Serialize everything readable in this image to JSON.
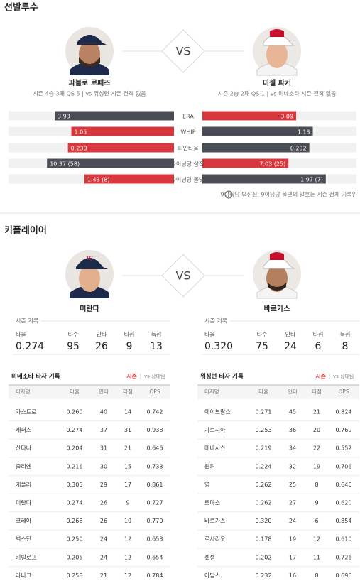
{
  "pitchers": {
    "title": "선발투수",
    "vs": "VS",
    "left": {
      "name": "파블로 로페즈",
      "info": "시즌 4승 3패 QS 5  |  vs 워싱턴 시즌 전적 없음"
    },
    "right": {
      "name": "미첼 파커",
      "info": "시즌 2승 2패 QS 1  |  vs 미네소타 시즌 전적 없음"
    },
    "stats": [
      {
        "label": "ERA",
        "values": [
          3.93,
          3.09
        ],
        "value_labels": [
          "3.93",
          "3.09"
        ],
        "colors": [
          "#4a4d55",
          "#d6383e"
        ]
      },
      {
        "label": "WHIP",
        "values": [
          1.05,
          1.13
        ],
        "value_labels": [
          "1.05",
          "1.13"
        ],
        "colors": [
          "#d6383e",
          "#4a4d55"
        ]
      },
      {
        "label": "피안타율",
        "values": [
          0.23,
          0.232
        ],
        "value_labels": [
          "0.230",
          "0.232"
        ],
        "colors": [
          "#d6383e",
          "#4a4d55"
        ]
      },
      {
        "label": "9이닝당 삼진",
        "values": [
          10.37,
          7.03
        ],
        "value_labels": [
          "10.37 (58)",
          "7.03 (25)"
        ],
        "colors": [
          "#4a4d55",
          "#d6383e"
        ]
      },
      {
        "label": "9이닝당 볼넷",
        "values": [
          1.43,
          1.97
        ],
        "value_labels": [
          "1.43 (8)",
          "1.97 (7)"
        ],
        "colors": [
          "#d6383e",
          "#4a4d55"
        ]
      }
    ],
    "note": "9이닝당 탈삼진, 9이닝당 볼넷의 괄호는 시즌 전체 기록임"
  },
  "key_players": {
    "title": "키플레이어",
    "vs": "VS",
    "players": [
      {
        "name": "미란다",
        "record_title": "시즌 기록",
        "headers": [
          "타율",
          "타수",
          "안타",
          "타점",
          "득점"
        ],
        "values": [
          "0.274",
          "95",
          "26",
          "9",
          "13"
        ]
      },
      {
        "name": "바르가스",
        "record_title": "시즌 기록",
        "headers": [
          "타율",
          "타수",
          "안타",
          "타점",
          "득점"
        ],
        "values": [
          "0.320",
          "75",
          "24",
          "6",
          "8"
        ]
      }
    ]
  },
  "tables": [
    {
      "title": "미네소타 타자 기록",
      "tabs": [
        "시즌",
        "vs 상대팀"
      ],
      "headers": [
        "타자명",
        "타율",
        "안타",
        "타점",
        "OPS"
      ],
      "rows": [
        [
          "카스트로",
          "0.260",
          "40",
          "14",
          "0.742"
        ],
        [
          "제퍼스",
          "0.274",
          "37",
          "31",
          "0.938"
        ],
        [
          "산타나",
          "0.204",
          "31",
          "21",
          "0.646"
        ],
        [
          "줄리엔",
          "0.216",
          "30",
          "15",
          "0.733"
        ],
        [
          "케플러",
          "0.305",
          "29",
          "17",
          "0.861"
        ],
        [
          "미란다",
          "0.274",
          "26",
          "9",
          "0.727"
        ],
        [
          "코레아",
          "0.268",
          "26",
          "10",
          "0.770"
        ],
        [
          "벅스턴",
          "0.250",
          "24",
          "12",
          "0.653"
        ],
        [
          "키릴로프",
          "0.205",
          "24",
          "12",
          "0.654"
        ],
        [
          "라나크",
          "0.258",
          "21",
          "12",
          "0.784"
        ]
      ]
    },
    {
      "title": "워싱턴 타자 기록",
      "tabs": [
        "시즌",
        "vs 상대팀"
      ],
      "headers": [
        "타자명",
        "타율",
        "안타",
        "타점",
        "OPS"
      ],
      "rows": [
        [
          "에이브람스",
          "0.271",
          "45",
          "21",
          "0.824"
        ],
        [
          "가르시아",
          "0.253",
          "36",
          "20",
          "0.769"
        ],
        [
          "메네시스",
          "0.219",
          "34",
          "22",
          "0.552"
        ],
        [
          "윈커",
          "0.224",
          "32",
          "19",
          "0.706"
        ],
        [
          "영",
          "0.262",
          "25",
          "8",
          "0.646"
        ],
        [
          "토마스",
          "0.262",
          "27",
          "9",
          "0.620"
        ],
        [
          "바르가스",
          "0.320",
          "24",
          "6",
          "0.854"
        ],
        [
          "로사리오",
          "0.178",
          "19",
          "12",
          "0.610"
        ],
        [
          "센젤",
          "0.202",
          "17",
          "11",
          "0.726"
        ],
        [
          "아담스",
          "0.232",
          "16",
          "8",
          "0.696"
        ]
      ]
    }
  ]
}
